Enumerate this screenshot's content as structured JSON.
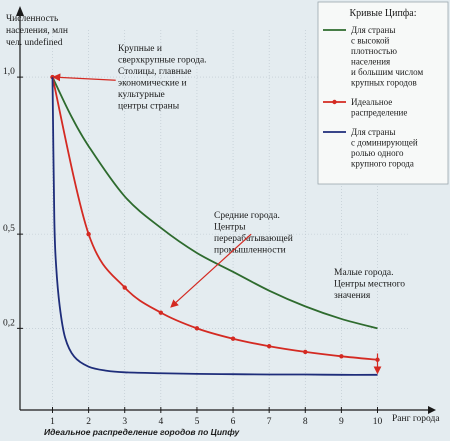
{
  "chart_data": {
    "type": "line",
    "title": "",
    "ylabel": "Численность населения, млн чел.",
    "xlabel": "Ранг города",
    "caption": "Идеальное распределение городов по Ципфу",
    "x_ticks": [
      "1",
      "2",
      "3",
      "4",
      "5",
      "6",
      "7",
      "8",
      "9",
      "10"
    ],
    "y_ticks": [
      {
        "value": 1.0,
        "label": "1,0"
      },
      {
        "value": 0.5,
        "label": "0,5"
      },
      {
        "value": 0.2,
        "label": "0,2"
      }
    ],
    "xlim": [
      0.1,
      10.9
    ],
    "ylim": [
      -0.06,
      1.15
    ],
    "legend": {
      "title": "Кривые Ципфа:",
      "placement": "top-right",
      "entries": [
        {
          "series": 0,
          "lines": [
            "Для страны",
            "с высокой",
            "плотностью",
            "населения",
            "и большим числом",
            "крупных городов"
          ]
        },
        {
          "series": 1,
          "lines": [
            "Идеальное",
            "распределение"
          ]
        },
        {
          "series": 2,
          "lines": [
            "Для страны",
            "с доминирующей",
            "ролью одного",
            "крупного города"
          ]
        }
      ]
    },
    "series": [
      {
        "color": "#2e6b2e",
        "markers": false,
        "x": [
          1,
          1.5,
          2,
          3,
          4,
          5,
          6,
          7,
          8,
          9,
          10
        ],
        "y": [
          1.0,
          0.88,
          0.78,
          0.62,
          0.52,
          0.44,
          0.38,
          0.32,
          0.27,
          0.23,
          0.2
        ]
      },
      {
        "color": "#d42a22",
        "markers": true,
        "x": [
          1,
          2,
          3,
          4,
          5,
          6,
          7,
          8,
          9,
          10
        ],
        "y": [
          1.0,
          0.5,
          0.33,
          0.25,
          0.2,
          0.167,
          0.143,
          0.125,
          0.111,
          0.1
        ]
      },
      {
        "color": "#1e2d7a",
        "markers": false,
        "x": [
          1,
          1.05,
          1.1,
          1.2,
          1.35,
          1.6,
          2,
          2.5,
          3,
          4,
          5,
          6,
          7,
          8,
          9,
          10
        ],
        "y": [
          1.0,
          0.55,
          0.4,
          0.27,
          0.17,
          0.11,
          0.078,
          0.065,
          0.06,
          0.057,
          0.055,
          0.054,
          0.053,
          0.053,
          0.052,
          0.052
        ]
      }
    ],
    "annotations": [
      {
        "lines": [
          "Крупные и",
          "сверхкрупные города.",
          "Столицы, главные",
          "экономические и",
          "культурные",
          "центры страны"
        ],
        "arrow_from": [
          2.75,
          0.99
        ],
        "arrow_to": [
          1.05,
          1.0
        ]
      },
      {
        "lines": [
          "Средние города.",
          "Центры",
          "перерабатывающей",
          "промышленности"
        ],
        "arrow_from": [
          6.5,
          0.5
        ],
        "arrow_to": [
          4.3,
          0.27
        ]
      },
      {
        "lines": [
          "Малые города.",
          "Центры местного",
          "значения"
        ],
        "arrow_from": [
          10.0,
          0.12
        ],
        "arrow_to": [
          10.0,
          0.06
        ]
      }
    ]
  }
}
